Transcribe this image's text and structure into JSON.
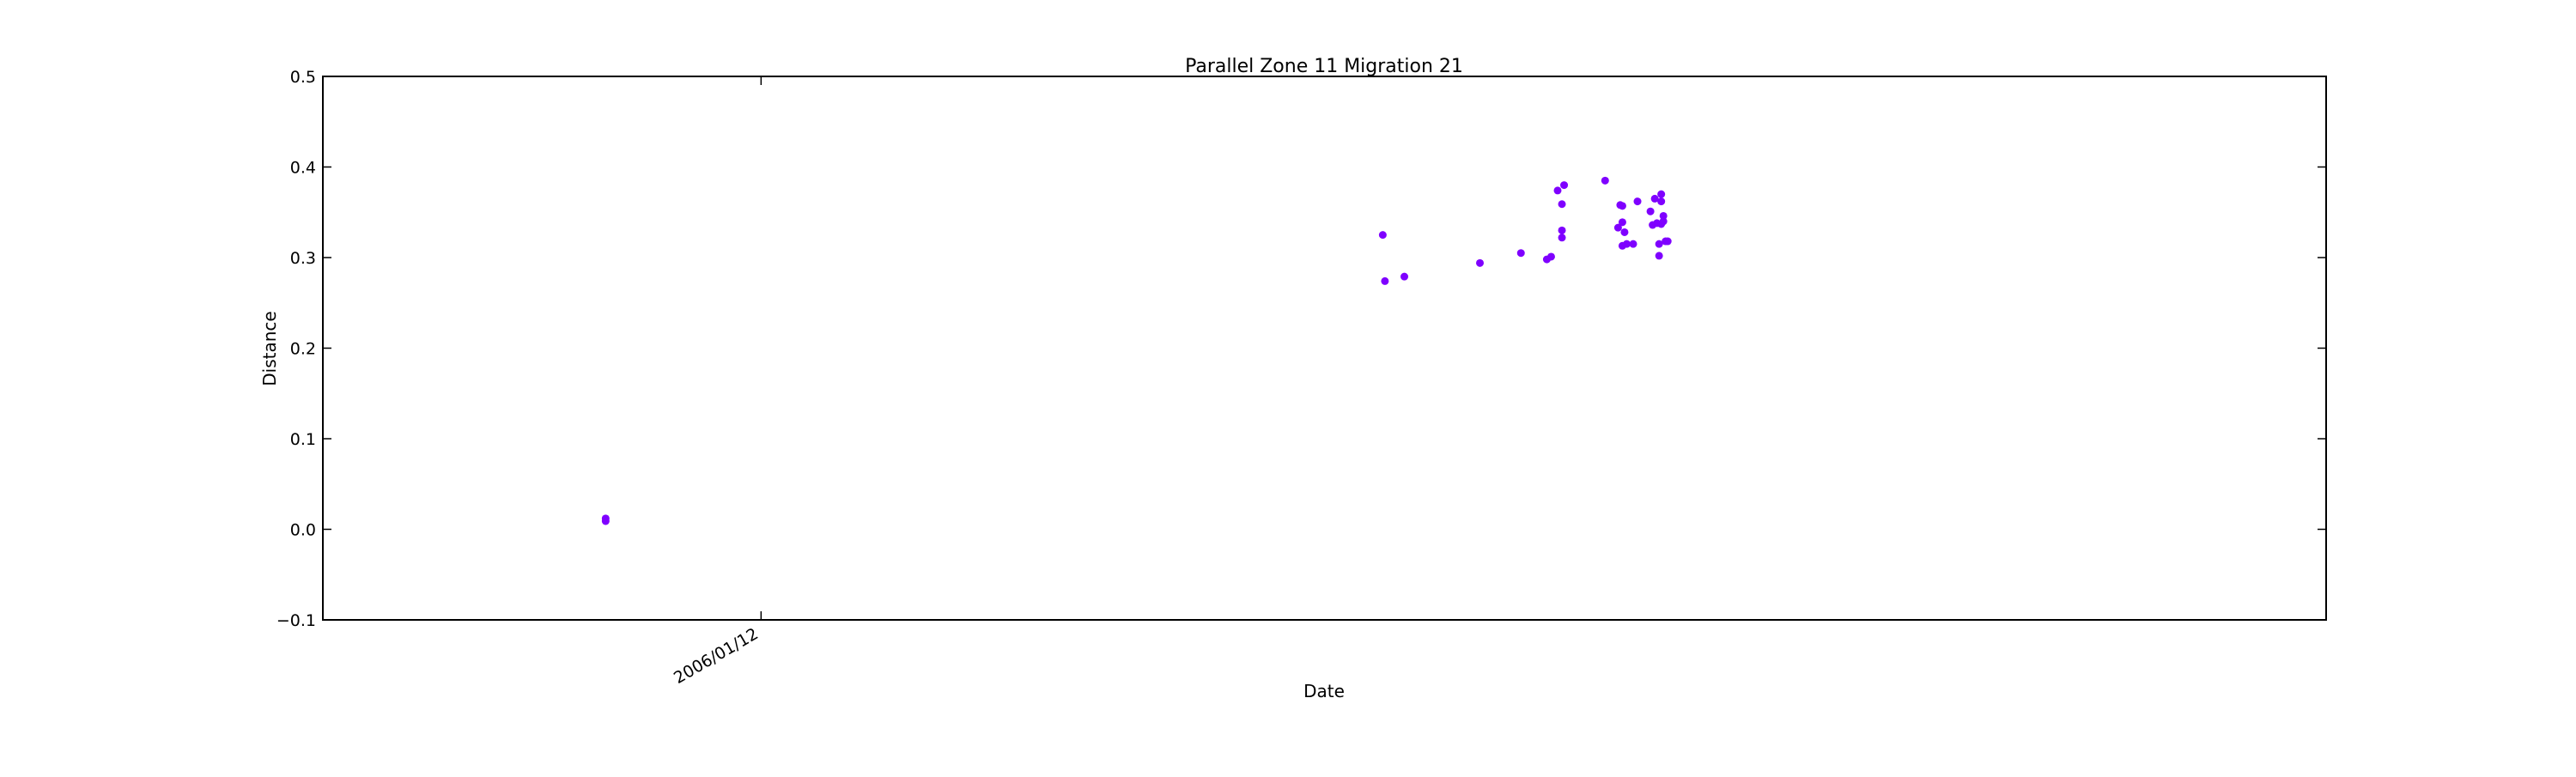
{
  "chart_data": {
    "type": "scatter",
    "title": "Parallel Zone 11 Migration 21",
    "xlabel": "Date",
    "ylabel": "Distance",
    "xlim": [
      "2005-06-23",
      "2008-01-07"
    ],
    "ylim": [
      -0.1,
      0.5
    ],
    "yticks": [
      -0.1,
      0.0,
      0.1,
      0.2,
      0.3,
      0.4,
      0.5
    ],
    "ytick_labels": [
      "−0.1",
      "0.0",
      "0.1",
      "0.2",
      "0.3",
      "0.4",
      "0.5"
    ],
    "xticks": [
      "2006-01-12"
    ],
    "xtick_labels": [
      "2006/01/12"
    ],
    "grid": false,
    "marker_color": "#7f00ff",
    "series": [
      {
        "x": [
          "2005-11-01",
          "2005-11-01",
          "2006-10-27",
          "2006-10-28",
          "2006-11-06",
          "2006-12-11",
          "2006-12-30",
          "2007-01-11",
          "2007-01-13",
          "2007-01-16",
          "2007-01-18",
          "2007-01-18",
          "2007-01-18",
          "2007-01-19",
          "2007-02-07",
          "2007-02-13",
          "2007-02-14",
          "2007-02-15",
          "2007-02-15",
          "2007-02-15",
          "2007-02-16",
          "2007-02-17",
          "2007-02-20",
          "2007-02-22",
          "2007-02-28",
          "2007-03-01",
          "2007-03-02",
          "2007-03-03",
          "2007-03-04",
          "2007-03-04",
          "2007-03-05",
          "2007-03-05",
          "2007-03-05",
          "2007-03-06",
          "2007-03-06",
          "2007-03-07",
          "2007-03-08"
        ],
        "y": [
          0.012,
          0.009,
          0.325,
          0.274,
          0.279,
          0.294,
          0.305,
          0.298,
          0.301,
          0.374,
          0.33,
          0.322,
          0.359,
          0.38,
          0.385,
          0.333,
          0.358,
          0.357,
          0.313,
          0.339,
          0.328,
          0.315,
          0.315,
          0.362,
          0.351,
          0.336,
          0.365,
          0.338,
          0.315,
          0.302,
          0.37,
          0.362,
          0.337,
          0.34,
          0.346,
          0.318,
          0.318
        ]
      }
    ]
  }
}
